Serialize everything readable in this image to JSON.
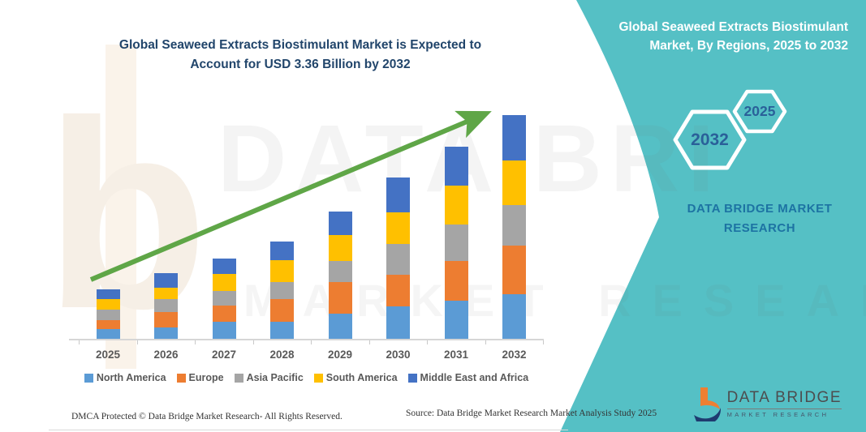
{
  "title": {
    "line1": "Global Seaweed Extracts Biostimulant Market is Expected to",
    "line2": "Account for USD 3.36 Billion by 2032"
  },
  "panel": {
    "heading": "Global Seaweed Extracts Biostimulant Market, By Regions, 2025 to 2032",
    "hex_large_label": "2032",
    "hex_small_label": "2025",
    "brand_text": "DATA BRIDGE MARKET RESEARCH",
    "teal_color": "#55c0c5"
  },
  "watermark": {
    "big": "DATA BRI",
    "small": "MARKET RESEARCH",
    "logo_letter": "b"
  },
  "footer": {
    "dmca": "DMCA Protected © Data Bridge Market Research-  All Rights Reserved.",
    "source": "Source: Data Bridge Market Research  Market Analysis Study 2025"
  },
  "logo": {
    "title": "DATA BRIDGE",
    "subtitle": "MARKET RESEARCH"
  },
  "chart_data": {
    "type": "bar",
    "stacked": true,
    "title": "Global Seaweed Extracts Biostimulant Market is Expected to Account for USD 3.36 Billion by 2032",
    "unit": "USD Billion",
    "xlabel": "",
    "ylabel": "",
    "ylim": [
      0,
      3.6
    ],
    "grid": false,
    "legend_position": "bottom",
    "trend_arrow": true,
    "trend_arrow_color": "#5fa647",
    "categories": [
      "2025",
      "2026",
      "2027",
      "2028",
      "2029",
      "2030",
      "2031",
      "2032"
    ],
    "series": [
      {
        "name": "North America",
        "color": "#5B9BD5",
        "values": [
          0.16,
          0.18,
          0.27,
          0.27,
          0.39,
          0.5,
          0.58,
          0.68
        ]
      },
      {
        "name": "Europe",
        "color": "#ED7D31",
        "values": [
          0.13,
          0.23,
          0.24,
          0.34,
          0.47,
          0.47,
          0.6,
          0.73
        ]
      },
      {
        "name": "Asia Pacific",
        "color": "#A5A5A5",
        "values": [
          0.16,
          0.19,
          0.22,
          0.25,
          0.31,
          0.46,
          0.54,
          0.6
        ]
      },
      {
        "name": "South America",
        "color": "#FFC000",
        "values": [
          0.15,
          0.17,
          0.25,
          0.33,
          0.39,
          0.47,
          0.58,
          0.67
        ]
      },
      {
        "name": "Middle East and Africa",
        "color": "#4472C4",
        "values": [
          0.15,
          0.22,
          0.23,
          0.28,
          0.36,
          0.52,
          0.59,
          0.68
        ]
      }
    ],
    "totals": [
      0.75,
      0.99,
      1.21,
      1.47,
      1.92,
      2.42,
      2.89,
      3.36
    ]
  }
}
